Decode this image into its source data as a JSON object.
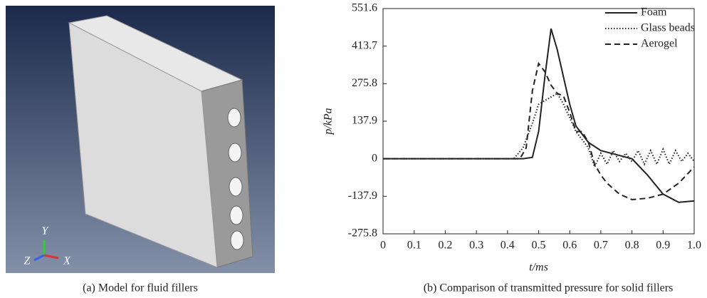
{
  "panel_a": {
    "caption": "(a) Model for fluid fillers",
    "axis_labels": [
      "Y",
      "Z",
      "X"
    ]
  },
  "chart_data": {
    "type": "line",
    "caption": "(b) Comparison of transmitted pressure for solid fillers",
    "x_label": "t/ms",
    "y_label": "p/kPa",
    "xlim": [
      0,
      1
    ],
    "ylim": [
      -275.8,
      551.6
    ],
    "xticks": [
      0,
      0.1,
      0.2,
      0.3,
      0.4,
      0.5,
      0.6,
      0.7,
      0.8,
      0.9,
      {
        "value": 1,
        "label": "1.0"
      }
    ],
    "yticks": [
      -275.8,
      -137.9,
      0,
      137.9,
      275.8,
      413.7,
      551.6
    ],
    "legend": "upper right",
    "series": [
      {
        "name": "Foam",
        "color": "#222222",
        "style": "solid",
        "x": [
          0,
          0.45,
          0.48,
          0.5,
          0.52,
          0.54,
          0.56,
          0.58,
          0.6,
          0.62,
          0.64,
          0.66,
          0.7,
          0.75,
          0.8,
          0.85,
          0.9,
          0.95,
          1.0
        ],
        "values": [
          0,
          0,
          5,
          100,
          300,
          478,
          400,
          300,
          200,
          120,
          90,
          60,
          30,
          15,
          0,
          -60,
          -130,
          -160,
          -155
        ]
      },
      {
        "name": "Glass beads",
        "color": "#222222",
        "style": "dotted",
        "x": [
          0,
          0.42,
          0.45,
          0.48,
          0.5,
          0.53,
          0.56,
          0.58,
          0.6,
          0.62,
          0.64,
          0.66,
          0.68,
          0.7,
          0.72,
          0.74,
          0.76,
          0.78,
          0.8,
          0.82,
          0.84,
          0.86,
          0.88,
          0.9,
          0.92,
          0.94,
          0.96,
          0.98,
          1.0
        ],
        "values": [
          0,
          0,
          40,
          130,
          200,
          220,
          240,
          200,
          150,
          100,
          70,
          40,
          -30,
          20,
          -20,
          30,
          -10,
          20,
          -10,
          30,
          -20,
          30,
          -20,
          35,
          -20,
          30,
          -10,
          20,
          -10
        ]
      },
      {
        "name": "Aerogel",
        "color": "#222222",
        "style": "dashed",
        "x": [
          0,
          0.44,
          0.46,
          0.48,
          0.5,
          0.52,
          0.54,
          0.56,
          0.58,
          0.6,
          0.62,
          0.64,
          0.66,
          0.68,
          0.7,
          0.72,
          0.76,
          0.8,
          0.85,
          0.9,
          0.95,
          1.0
        ],
        "values": [
          0,
          0,
          40,
          250,
          350,
          320,
          270,
          240,
          230,
          170,
          100,
          100,
          60,
          -20,
          -60,
          -90,
          -130,
          -150,
          -145,
          -130,
          -90,
          -30
        ]
      }
    ]
  }
}
